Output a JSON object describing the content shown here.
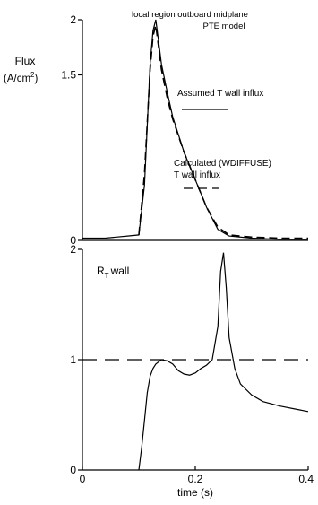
{
  "chart_data": [
    {
      "type": "line",
      "title": "local region outboard midplane PTE model",
      "ylabel": "Flux (A/cm²)",
      "ylim": [
        0,
        2
      ],
      "xlim": [
        0,
        0.4
      ],
      "yticks": [
        {
          "value": 0,
          "label": "0"
        },
        {
          "value": 1.5,
          "label": "1.5"
        },
        {
          "value": 2,
          "label": "2"
        }
      ],
      "series": [
        {
          "name": "Assumed T wall influx",
          "style": "solid",
          "color": "#000000",
          "x": [
            0,
            0.02,
            0.04,
            0.06,
            0.08,
            0.1,
            0.11,
            0.12,
            0.125,
            0.13,
            0.135,
            0.14,
            0.15,
            0.16,
            0.18,
            0.2,
            0.22,
            0.24,
            0.26,
            0.3,
            0.35,
            0.4
          ],
          "y": [
            0.02,
            0.02,
            0.02,
            0.03,
            0.04,
            0.05,
            0.5,
            1.6,
            1.9,
            2.0,
            1.8,
            1.6,
            1.35,
            1.12,
            0.8,
            0.55,
            0.3,
            0.1,
            0.04,
            0.02,
            0.01,
            0.01
          ]
        },
        {
          "name": "Calculated (WDIFFUSE) T wall influx",
          "style": "dashed",
          "color": "#000000",
          "x": [
            0.1,
            0.11,
            0.12,
            0.125,
            0.13,
            0.135,
            0.14,
            0.15,
            0.16,
            0.18,
            0.2,
            0.22,
            0.24,
            0.26,
            0.3,
            0.35,
            0.4
          ],
          "y": [
            0.05,
            0.6,
            1.55,
            1.85,
            1.95,
            1.75,
            1.55,
            1.3,
            1.1,
            0.8,
            0.55,
            0.3,
            0.12,
            0.05,
            0.03,
            0.02,
            0.02
          ]
        }
      ]
    },
    {
      "type": "line",
      "title": "",
      "ylabel": "R_T wall",
      "xlabel": "time (s)",
      "ylim": [
        0,
        2
      ],
      "xlim": [
        0,
        0.4
      ],
      "xticks": [
        {
          "value": 0,
          "label": "0"
        },
        {
          "value": 0.2,
          "label": "0.2"
        },
        {
          "value": 0.4,
          "label": "0.4"
        }
      ],
      "yticks": [
        {
          "value": 0,
          "label": "0"
        },
        {
          "value": 1,
          "label": "1"
        },
        {
          "value": 2,
          "label": "2"
        }
      ],
      "reference_line": {
        "y": 1,
        "style": "dashed"
      },
      "series": [
        {
          "name": "R_T wall",
          "style": "solid",
          "color": "#000000",
          "x": [
            0.1,
            0.105,
            0.11,
            0.115,
            0.12,
            0.125,
            0.13,
            0.14,
            0.15,
            0.16,
            0.17,
            0.18,
            0.19,
            0.2,
            0.21,
            0.22,
            0.23,
            0.24,
            0.245,
            0.25,
            0.255,
            0.26,
            0.27,
            0.28,
            0.3,
            0.32,
            0.35,
            0.38,
            0.4
          ],
          "y": [
            0.0,
            0.2,
            0.45,
            0.7,
            0.85,
            0.92,
            0.96,
            1.0,
            0.99,
            0.96,
            0.9,
            0.87,
            0.86,
            0.88,
            0.92,
            0.95,
            1.0,
            1.3,
            1.8,
            1.97,
            1.65,
            1.2,
            0.92,
            0.78,
            0.68,
            0.62,
            0.58,
            0.55,
            0.53
          ]
        }
      ]
    }
  ],
  "legend": {
    "assumed_line1": "Assumed T wall influx",
    "calculated_line1": "Calculated (WDIFFUSE)",
    "calculated_line2": "T wall influx"
  },
  "top_title": {
    "line1": "local region outboard midplane",
    "line2": "PTE model"
  },
  "flux_label": {
    "line1": "Flux",
    "line2": "(A/cm",
    "sup": "2",
    "close": ")"
  },
  "rt_label": {
    "r": "R",
    "sub": "T",
    "wall": "wall"
  },
  "x_axis_label": "time (s)"
}
